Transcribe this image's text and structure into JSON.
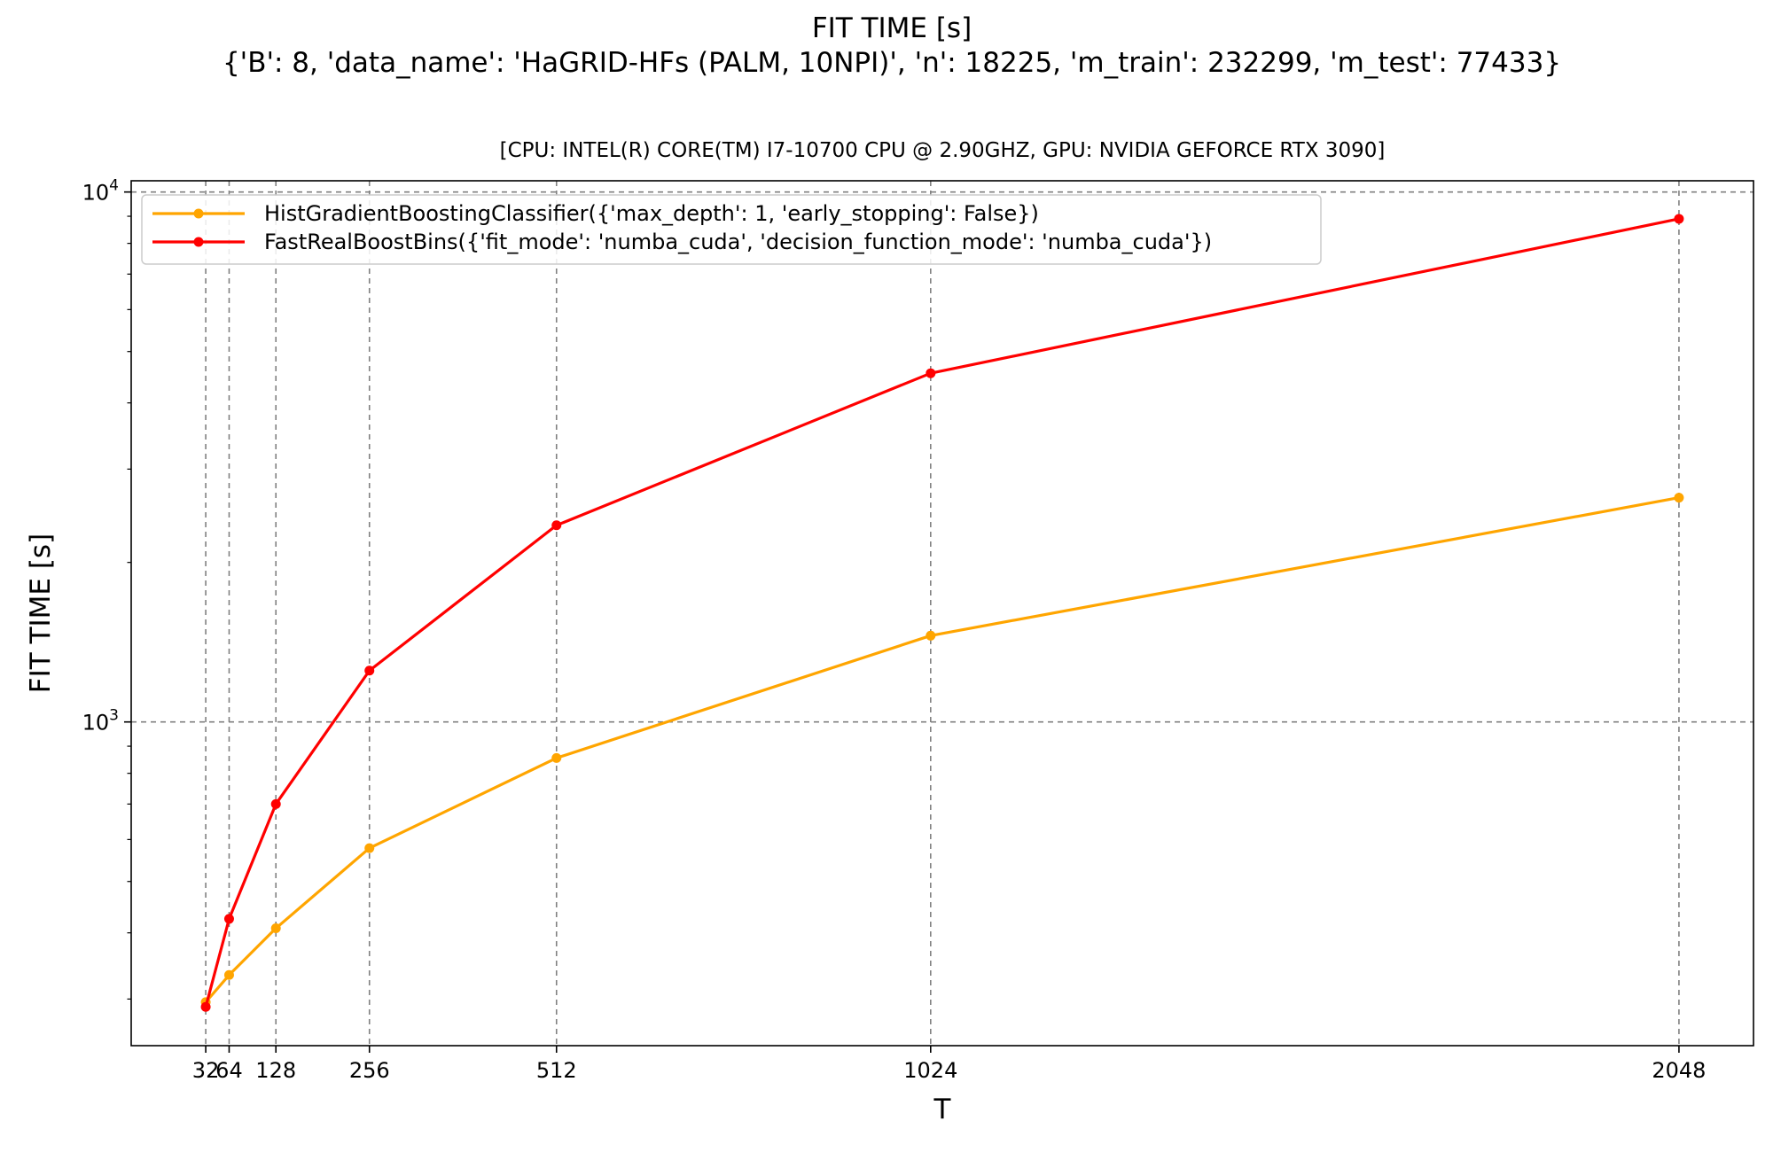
{
  "figure": {
    "title": "FIT TIME [s]",
    "subtitle": "{'B': 8, 'data_name': 'HaGRID-HFs (PALM, 10NPI)', 'n': 18225, 'm_train': 232299, 'm_test': 77433}",
    "axes_title": "[CPU: INTEL(R) CORE(TM) I7-10700 CPU @ 2.90GHZ, GPU: NVIDIA GEFORCE RTX 3090]"
  },
  "chart_data": {
    "type": "line",
    "xlabel": "T",
    "ylabel": "FIT TIME [s]",
    "x": [
      32,
      64,
      128,
      256,
      512,
      1024,
      2048
    ],
    "x_tick_labels": [
      "32",
      "64",
      "128",
      "256",
      "512",
      "1024",
      "2048"
    ],
    "xlim": [
      -70,
      2150
    ],
    "y_scale": "log",
    "ylim": [
      245,
      10500
    ],
    "y_tick_labels": [
      {
        "value": 1000,
        "base": "10",
        "exp": "3"
      },
      {
        "value": 10000,
        "base": "10",
        "exp": "4"
      }
    ],
    "grid": true,
    "legend_position": "top-left",
    "series": [
      {
        "name": "HistGradientBoostingClassifier({'max_depth': 1, 'early_stopping': False})",
        "color": "#FFA500",
        "values": [
          296,
          333,
          408,
          578,
          855,
          1455,
          2650
        ]
      },
      {
        "name": "FastRealBoostBins({'fit_mode': 'numba_cuda', 'decision_function_mode': 'numba_cuda'})",
        "color": "#FF0000",
        "values": [
          290,
          425,
          700,
          1250,
          2350,
          4550,
          8900
        ]
      }
    ]
  }
}
